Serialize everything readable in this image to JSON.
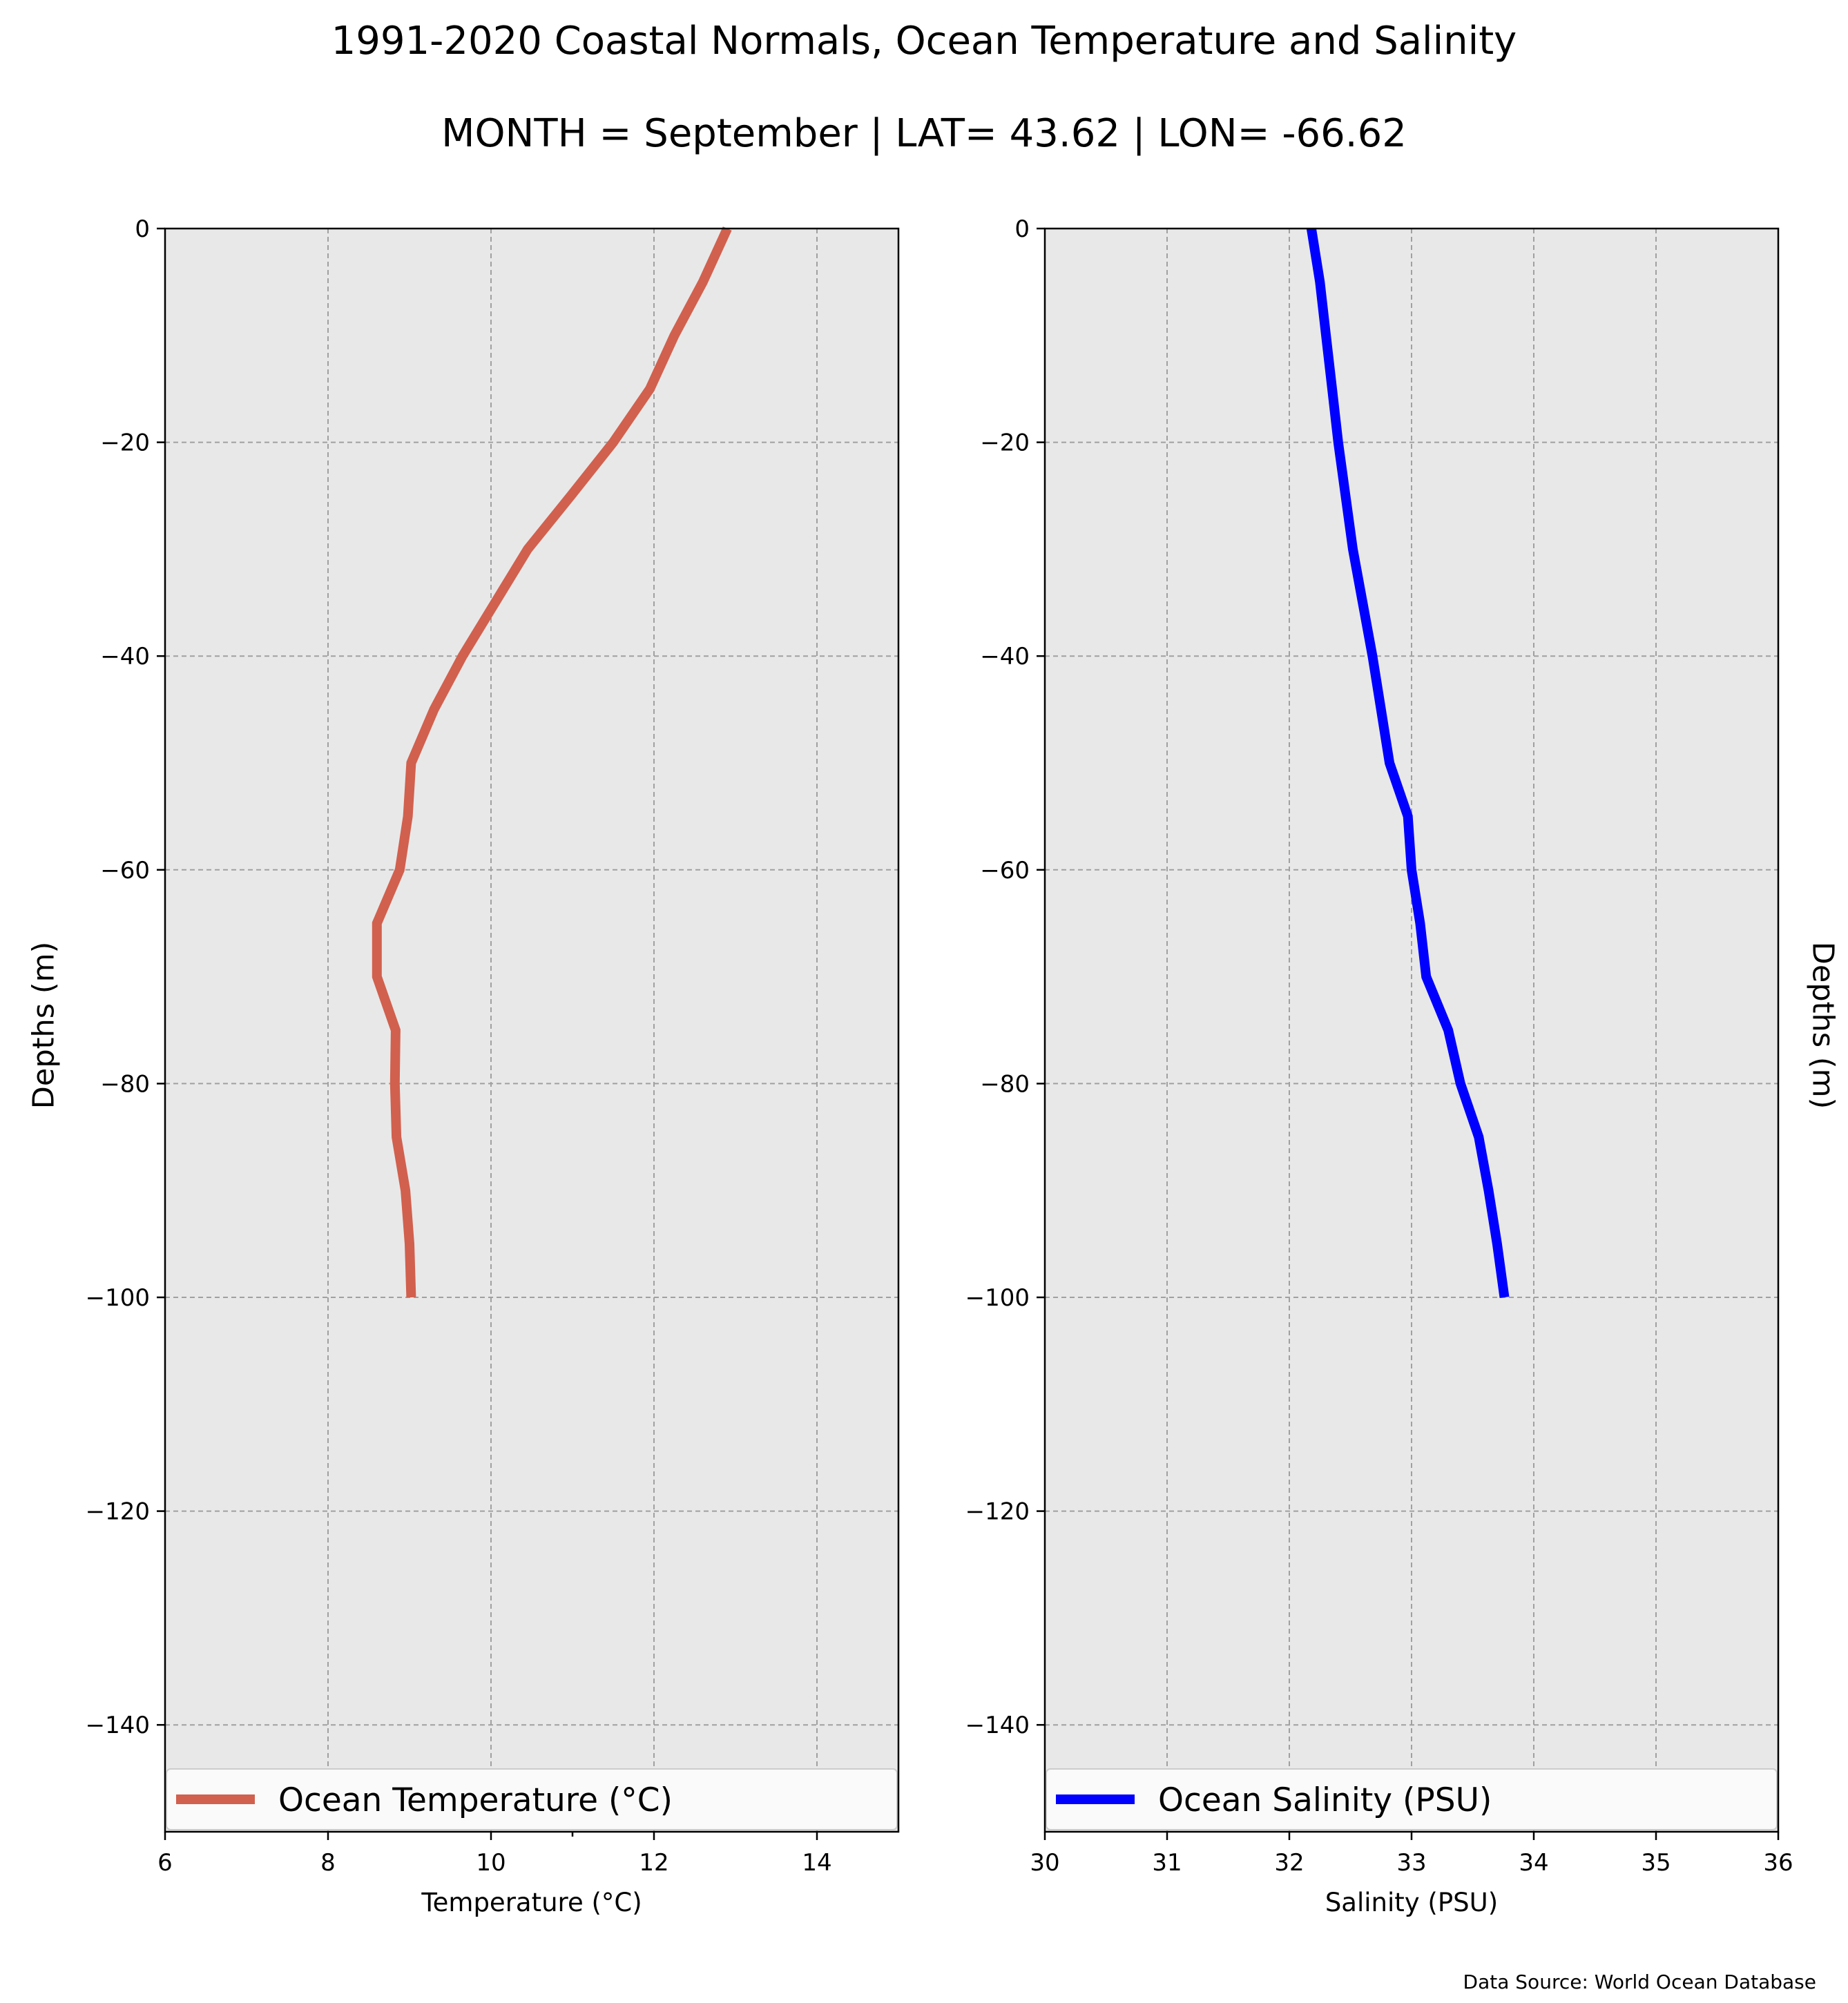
{
  "title": "1991-2020 Coastal Normals, Ocean Temperature and Salinity",
  "subtitle": "MONTH = September | LAT= 43.62 | LON= -66.62",
  "source": "Data Source: World Ocean Database",
  "chart_data": [
    {
      "type": "line",
      "xlabel": "Temperature (°C)",
      "ylabel": "Depths (m)",
      "xlim": [
        6,
        15
      ],
      "ylim": [
        -150,
        0
      ],
      "xticks": [
        6,
        8,
        10,
        12,
        14
      ],
      "xticks_minor": [
        11
      ],
      "yticks": [
        0,
        -20,
        -40,
        -60,
        -80,
        -100,
        -120,
        -140
      ],
      "grid": true,
      "background": "#e8e8e8",
      "legend_position": "bottom",
      "series": [
        {
          "name": "Ocean Temperature (°C)",
          "color": "#d1604e",
          "x": [
            12.9,
            12.6,
            12.25,
            11.95,
            11.5,
            10.98,
            10.45,
            10.05,
            9.65,
            9.3,
            9.02,
            8.98,
            8.88,
            8.6,
            8.6,
            8.83,
            8.82,
            8.84,
            8.95,
            9.0,
            9.02
          ],
          "y": [
            0,
            -5,
            -10,
            -15,
            -20,
            -25,
            -30,
            -35,
            -40,
            -45,
            -50,
            -55,
            -60,
            -65,
            -70,
            -75,
            -80,
            -85,
            -90,
            -95,
            -100
          ]
        }
      ]
    },
    {
      "type": "line",
      "xlabel": "Salinity (PSU)",
      "ylabel": "Depths (m)",
      "xlim": [
        30,
        36
      ],
      "ylim": [
        -150,
        0
      ],
      "xticks": [
        30,
        31,
        32,
        33,
        34,
        35,
        36
      ],
      "yticks": [
        0,
        -20,
        -40,
        -60,
        -80,
        -100,
        -120,
        -140
      ],
      "grid": true,
      "background": "#e8e8e8",
      "legend_position": "bottom",
      "series": [
        {
          "name": "Ocean Salinity (PSU)",
          "color": "#0000ff",
          "x": [
            32.18,
            32.25,
            32.3,
            32.35,
            32.4,
            32.46,
            32.52,
            32.6,
            32.68,
            32.75,
            32.82,
            32.97,
            33.0,
            33.07,
            33.12,
            33.3,
            33.4,
            33.55,
            33.63,
            33.7,
            33.76
          ],
          "y": [
            0,
            -5,
            -10,
            -15,
            -20,
            -25,
            -30,
            -35,
            -40,
            -45,
            -50,
            -55,
            -60,
            -65,
            -70,
            -75,
            -80,
            -85,
            -90,
            -95,
            -100
          ]
        }
      ]
    }
  ]
}
